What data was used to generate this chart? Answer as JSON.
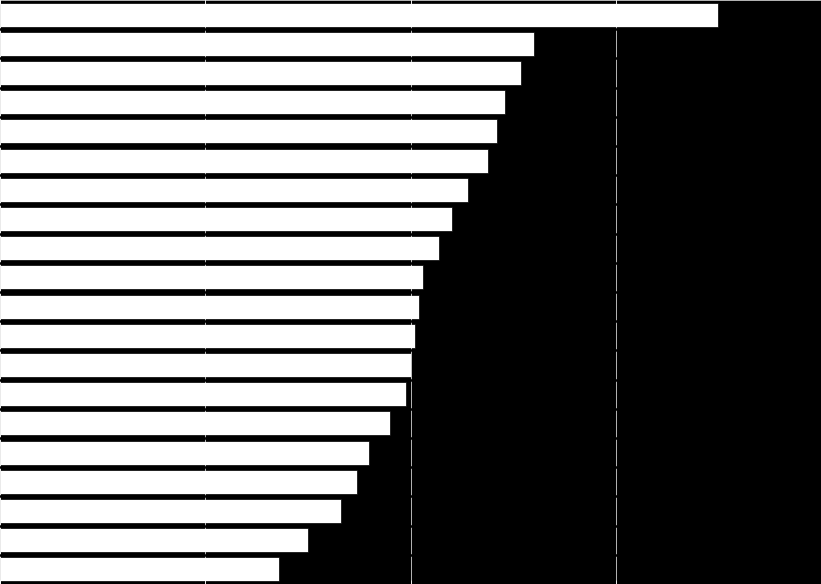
{
  "background_color": "#000000",
  "bar_color": "#ffffff",
  "grid_color": "#ffffff",
  "values": [
    175,
    130,
    127,
    123,
    121,
    119,
    114,
    110,
    107,
    103,
    102,
    101,
    100,
    99,
    95,
    90,
    87,
    83,
    75,
    68
  ],
  "xlim": [
    0,
    200
  ],
  "xtick_positions": [
    0,
    50,
    100,
    150,
    200
  ],
  "bar_height": 0.82,
  "figsize": [
    8.21,
    5.84
  ],
  "dpi": 100
}
